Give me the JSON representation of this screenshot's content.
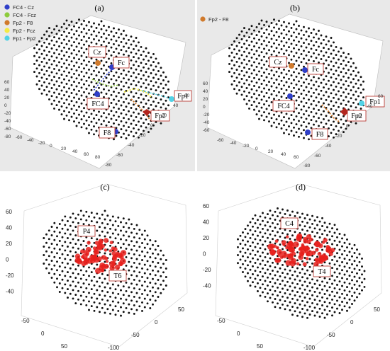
{
  "panels": {
    "a": {
      "label": "(a)",
      "legend": [
        {
          "text": "FC4 - Cz",
          "color": "#2f3fc9"
        },
        {
          "text": "FC4 - Fcz",
          "color": "#8dcb3b"
        },
        {
          "text": "Fp2 - F8",
          "color": "#d07a2c"
        },
        {
          "text": "Fp2 - Fcz",
          "color": "#f3ea45"
        },
        {
          "text": "Fp1 - Fp2",
          "color": "#52d2e6"
        }
      ],
      "annotations": [
        "Cz",
        "Fc",
        "FC4",
        "Fp1",
        "Fp2",
        "F8"
      ],
      "left_ticks": [
        "60",
        "40",
        "20",
        "0",
        "-20",
        "-40",
        "-60",
        "-80"
      ],
      "bottom_ticks": [
        "-60",
        "-40",
        "-20",
        "0",
        "20",
        "40",
        "60",
        "80"
      ],
      "right_ticks": [
        "-80",
        "-60",
        "-40",
        "-20",
        "0",
        "20",
        "40",
        "60"
      ]
    },
    "b": {
      "label": "(b)",
      "legend": [
        {
          "text": "Fp2 - F8",
          "color": "#d07a2c"
        }
      ],
      "annotations": [
        "Cz",
        "Fc",
        "FC4",
        "Fp1",
        "Fp2",
        "F8"
      ],
      "left_ticks": [
        "60",
        "40",
        "20",
        "0",
        "-20",
        "-40",
        "-60"
      ],
      "bottom_ticks": [
        "-60",
        "-40",
        "-20",
        "0",
        "20",
        "40",
        "60"
      ],
      "right_ticks": [
        "-80",
        "-60",
        "-40",
        "-20",
        "0",
        "20",
        "40",
        "60"
      ]
    },
    "c": {
      "label": "(c)",
      "annotations": [
        "P4",
        "T6"
      ],
      "left_ticks": [
        "60",
        "40",
        "20",
        "0",
        "-20",
        "-40"
      ],
      "bottom_left_ticks": [
        "-50",
        "0",
        "50"
      ],
      "bottom_right_ticks": [
        "-100",
        "-50",
        "0",
        "50"
      ]
    },
    "d": {
      "label": "(d)",
      "annotations": [
        "C4",
        "T4"
      ],
      "left_ticks": [
        "60",
        "40",
        "20",
        "0",
        "-20",
        "-40"
      ],
      "bottom_left_ticks": [
        "-50",
        "0",
        "50"
      ],
      "bottom_right_ticks": [
        "-100",
        "-50",
        "0",
        "50"
      ]
    }
  },
  "colors": {
    "dot": "#111111",
    "activation": "#e8201c",
    "electrode_blue": "#2f3fc9",
    "electrode_orange": "#d07a2c",
    "electrode_cyan": "#52d2e6",
    "electrode_red": "#b3261e"
  }
}
